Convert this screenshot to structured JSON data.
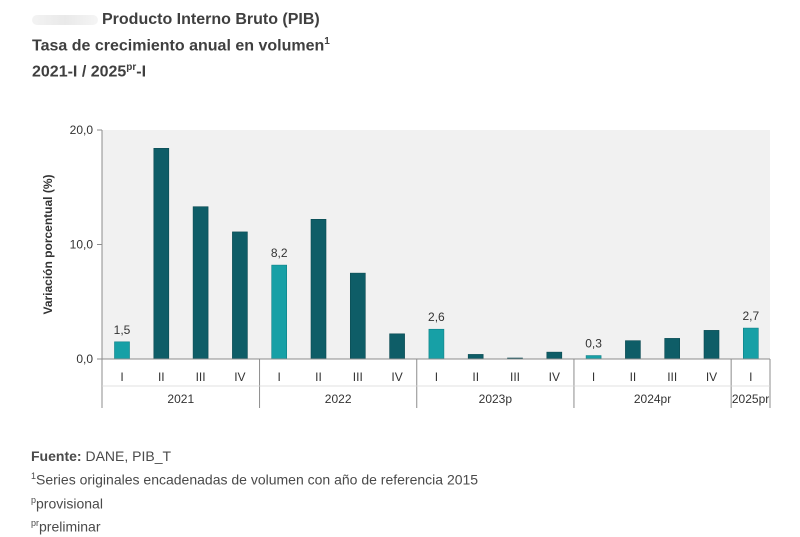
{
  "title": {
    "line1": "Producto Interno Bruto (PIB)",
    "line2": "Tasa de crecimiento anual en volumen",
    "line2_sup": "1",
    "line3_a": "2021-I / 2025",
    "line3_sup": "pr",
    "line3_b": "-I"
  },
  "notes": {
    "source_label": "Fuente:",
    "source_text": " DANE, PIB_T",
    "note1_sup": "1",
    "note1_text": "Series originales encadenadas de volumen con año de referencia 2015",
    "note2_sup": "p",
    "note2_text": "provisional",
    "note3_sup": "pr",
    "note3_text": "preliminar"
  },
  "colors": {
    "highlight": "#17a0a6",
    "regular": "#0e5d67",
    "axis": "#8c8c8c",
    "grid_box": "#f1f1f1"
  },
  "chart_data": {
    "type": "bar",
    "ylabel": "Variación porcentual (%)",
    "ylim": [
      0,
      20
    ],
    "yticks": [
      "0,0",
      "10,0",
      "20,0"
    ],
    "yticks_values": [
      0,
      10,
      20
    ],
    "grid": false,
    "categories": [
      "I",
      "II",
      "III",
      "IV",
      "I",
      "II",
      "III",
      "IV",
      "I",
      "II",
      "III",
      "IV",
      "I",
      "II",
      "III",
      "IV",
      "I"
    ],
    "values": [
      1.5,
      18.4,
      13.3,
      11.1,
      8.2,
      12.2,
      7.5,
      2.2,
      2.6,
      0.4,
      0.05,
      0.6,
      0.3,
      1.6,
      1.8,
      2.5,
      2.7
    ],
    "highlighted": [
      true,
      false,
      false,
      false,
      true,
      false,
      false,
      false,
      true,
      false,
      false,
      false,
      true,
      false,
      false,
      false,
      true
    ],
    "data_labels": [
      "1,5",
      "",
      "",
      "",
      "8,2",
      "",
      "",
      "",
      "2,6",
      "",
      "",
      "",
      "0,3",
      "",
      "",
      "",
      "2,7"
    ],
    "groups": [
      {
        "label": "2021",
        "count": 4
      },
      {
        "label": "2022",
        "count": 4
      },
      {
        "label": "2023p",
        "count": 4
      },
      {
        "label": "2024pr",
        "count": 4
      },
      {
        "label": "2025pr",
        "count": 1
      }
    ]
  }
}
